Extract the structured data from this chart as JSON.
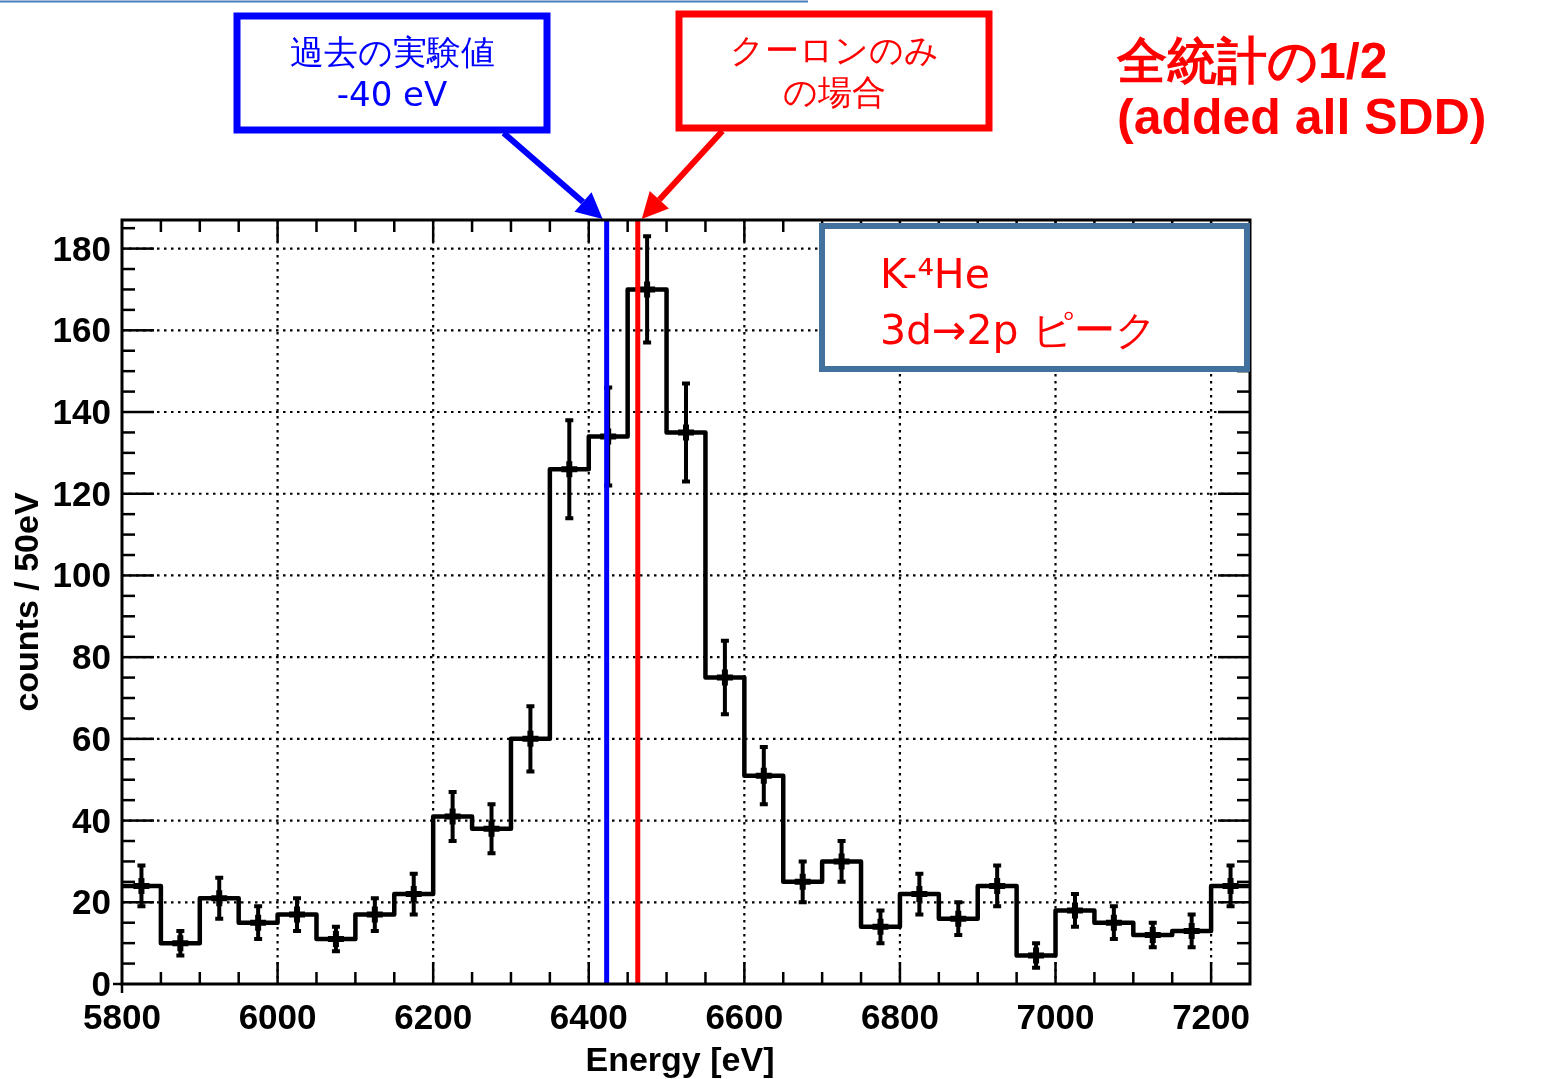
{
  "chart_data": {
    "type": "histogram",
    "title": "K-⁴He\n3d→2p ピーク",
    "subtitle": "全統計の1/2\n(added all SDD)",
    "xlabel": "Energy [eV]",
    "ylabel": "counts / 50eV",
    "bins": [
      5800,
      5850,
      5900,
      5950,
      6000,
      6050,
      6100,
      6150,
      6200,
      6250,
      6300,
      6350,
      6400,
      6450,
      6500,
      6550,
      6600,
      6650,
      6700,
      6750,
      6800,
      6850,
      6900,
      6950,
      7000,
      7050,
      7100,
      7150,
      7200,
      7250
    ],
    "series": [
      {
        "color": "#000000",
        "values": [
          24,
          10,
          21,
          15,
          17,
          11,
          17,
          22,
          41,
          38,
          60,
          126,
          134,
          170,
          135,
          75,
          51,
          25,
          30,
          14,
          22,
          16,
          24,
          7,
          18,
          15,
          12,
          13,
          24
        ]
      },
      {
        "type": "scatter",
        "color": "#000000",
        "marker": "cross",
        "x": [
          5825,
          5875,
          5925,
          5975,
          6025,
          6075,
          6125,
          6175,
          6225,
          6275,
          6325,
          6375,
          6425,
          6475,
          6525,
          6575,
          6625,
          6675,
          6725,
          6775,
          6825,
          6875,
          6925,
          6975,
          7025,
          7075,
          7125,
          7175,
          7225
        ],
        "values": [
          24,
          10,
          21,
          15,
          17,
          11,
          17,
          22,
          41,
          38,
          60,
          126,
          134,
          170,
          135,
          75,
          51,
          25,
          30,
          14,
          22,
          16,
          24,
          7,
          18,
          15,
          12,
          13,
          24
        ],
        "errors": [
          5,
          3,
          5,
          4,
          4,
          3,
          4,
          5,
          6,
          6,
          8,
          12,
          12,
          13,
          12,
          9,
          7,
          5,
          5,
          4,
          5,
          4,
          5,
          3,
          4,
          4,
          3,
          4,
          5
        ]
      }
    ],
    "xlim": [
      5800,
      7250
    ],
    "ylim": [
      0,
      187
    ],
    "xticks": [
      5800,
      {
        "value": 5850,
        "label": null
      },
      {
        "value": 5900,
        "label": null
      },
      {
        "value": 5950,
        "label": null
      },
      6000,
      {
        "value": 6050,
        "label": null
      },
      {
        "value": 6100,
        "label": null
      },
      {
        "value": 6150,
        "label": null
      },
      6200,
      {
        "value": 6250,
        "label": null
      },
      {
        "value": 6300,
        "label": null
      },
      {
        "value": 6350,
        "label": null
      },
      6400,
      {
        "value": 6450,
        "label": null
      },
      {
        "value": 6500,
        "label": null
      },
      {
        "value": 6550,
        "label": null
      },
      6600,
      {
        "value": 6650,
        "label": null
      },
      {
        "value": 6700,
        "label": null
      },
      {
        "value": 6750,
        "label": null
      },
      6800,
      {
        "value": 6850,
        "label": null
      },
      {
        "value": 6900,
        "label": null
      },
      {
        "value": 6950,
        "label": null
      },
      7000,
      {
        "value": 7050,
        "label": null
      },
      {
        "value": 7100,
        "label": null
      },
      {
        "value": 7150,
        "label": null
      },
      7200
    ],
    "yticks": [
      0,
      {
        "value": 5,
        "label": null
      },
      {
        "value": 10,
        "label": null
      },
      {
        "value": 15,
        "label": null
      },
      20,
      {
        "value": 25,
        "label": null
      },
      {
        "value": 30,
        "label": null
      },
      {
        "value": 35,
        "label": null
      },
      40,
      {
        "value": 45,
        "label": null
      },
      {
        "value": 50,
        "label": null
      },
      {
        "value": 55,
        "label": null
      },
      60,
      {
        "value": 65,
        "label": null
      },
      {
        "value": 70,
        "label": null
      },
      {
        "value": 75,
        "label": null
      },
      80,
      {
        "value": 85,
        "label": null
      },
      {
        "value": 90,
        "label": null
      },
      {
        "value": 95,
        "label": null
      },
      100,
      {
        "value": 105,
        "label": null
      },
      {
        "value": 110,
        "label": null
      },
      {
        "value": 115,
        "label": null
      },
      120,
      {
        "value": 125,
        "label": null
      },
      {
        "value": 130,
        "label": null
      },
      {
        "value": 135,
        "label": null
      },
      140,
      {
        "value": 145,
        "label": null
      },
      {
        "value": 150,
        "label": null
      },
      {
        "value": 155,
        "label": null
      },
      160,
      {
        "value": 165,
        "label": null
      },
      {
        "value": 170,
        "label": null
      },
      {
        "value": 175,
        "label": null
      },
      180,
      {
        "value": 185,
        "label": null
      }
    ],
    "grid": true,
    "ref_lines": [
      {
        "axis": "x",
        "value": 6423,
        "label": "過去の実験値\n-40 eV",
        "color": "#0000ff"
      },
      {
        "axis": "x",
        "value": 6463,
        "label": "クーロンのみの場合",
        "color": "#ff0000"
      }
    ]
  }
}
